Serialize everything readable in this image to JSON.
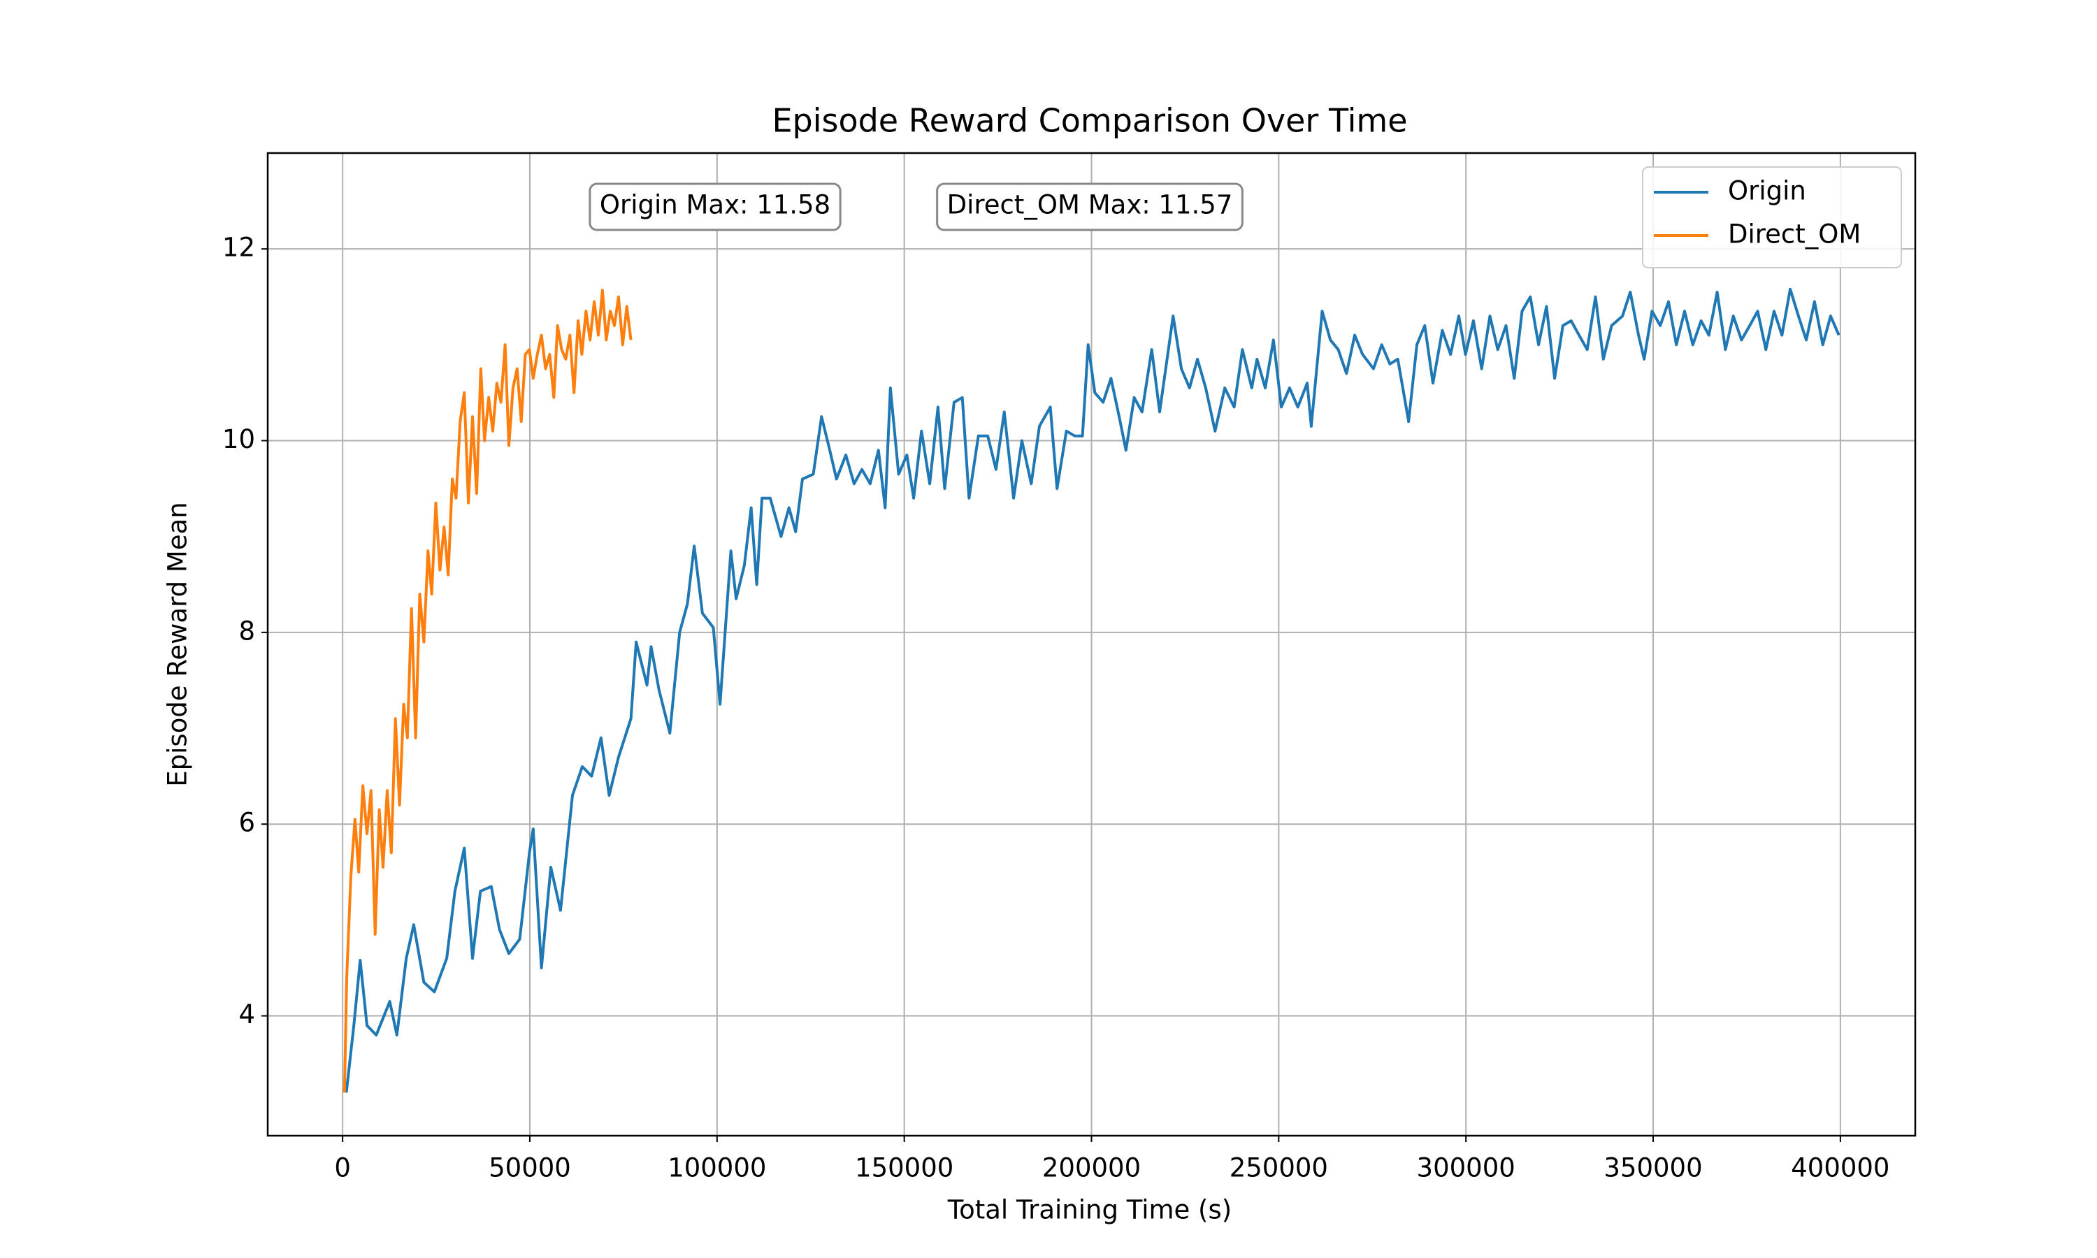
{
  "chart_data": {
    "type": "line",
    "title": "Episode Reward Comparison Over Time",
    "x_label": "Total Training Time (s)",
    "y_label": "Episode Reward Mean",
    "xlim": [
      -20000,
      420000
    ],
    "ylim": [
      2.75,
      13.0
    ],
    "xticks": [
      0,
      50000,
      100000,
      150000,
      200000,
      250000,
      300000,
      350000,
      400000
    ],
    "yticks": [
      4,
      6,
      8,
      10,
      12
    ],
    "grid": true,
    "legend": "upper right",
    "annotations": [
      "Origin Max: 11.58",
      "Direct_OM Max: 11.57"
    ],
    "series": [
      {
        "name": "Origin",
        "color": "#1f77b4",
        "x": [
          1000,
          3000,
          4700,
          6500,
          9000,
          12600,
          14500,
          17000,
          19000,
          21700,
          24500,
          27800,
          30000,
          32500,
          34700,
          36800,
          39700,
          41900,
          44400,
          47300,
          49900,
          50900,
          53100,
          55600,
          58200,
          61400,
          64000,
          66500,
          69000,
          71200,
          73700,
          77000,
          78400,
          81300,
          82400,
          84500,
          87400,
          90000,
          92100,
          93900,
          96100,
          99000,
          100800,
          103700,
          105100,
          107300,
          109100,
          110600,
          112000,
          114200,
          117100,
          119200,
          121000,
          122800,
          125700,
          127900,
          130100,
          131900,
          134400,
          136600,
          138700,
          140900,
          143100,
          144900,
          146300,
          148500,
          150700,
          152500,
          154600,
          156800,
          159000,
          160800,
          163300,
          165500,
          167300,
          169800,
          172300,
          174500,
          176700,
          179200,
          181400,
          183900,
          186100,
          189000,
          190800,
          193300,
          195500,
          197600,
          199100,
          200900,
          203100,
          205200,
          207400,
          209200,
          211400,
          213500,
          216100,
          218200,
          221800,
          224000,
          226200,
          228300,
          230500,
          233000,
          235600,
          238100,
          240300,
          242800,
          244200,
          246400,
          248600,
          250700,
          252900,
          255100,
          257600,
          258700,
          261600,
          263800,
          265900,
          268100,
          270300,
          272400,
          275300,
          277500,
          279700,
          281800,
          284700,
          286900,
          289000,
          291200,
          293700,
          295900,
          298100,
          299900,
          302000,
          304200,
          306400,
          308500,
          310700,
          312900,
          315000,
          317200,
          319400,
          321500,
          323700,
          325900,
          328100,
          330200,
          332400,
          334600,
          336700,
          338900,
          341800,
          343900,
          346100,
          347600,
          349700,
          351900,
          354100,
          356200,
          358400,
          360600,
          362800,
          364900,
          367100,
          369300,
          371400,
          373600,
          375800,
          377900,
          380100,
          382300,
          384400,
          386600,
          388800,
          390900,
          393100,
          395300,
          397400,
          399600
        ],
        "values": [
          3.2,
          3.9,
          4.58,
          3.9,
          3.8,
          4.15,
          3.8,
          4.6,
          4.95,
          4.35,
          4.25,
          4.6,
          5.3,
          5.75,
          4.6,
          5.3,
          5.35,
          4.9,
          4.65,
          4.8,
          5.7,
          5.95,
          4.5,
          5.55,
          5.1,
          6.3,
          6.6,
          6.5,
          6.9,
          6.3,
          6.7,
          7.1,
          7.9,
          7.45,
          7.85,
          7.4,
          6.95,
          8.0,
          8.3,
          8.9,
          8.2,
          8.05,
          7.25,
          8.85,
          8.35,
          8.7,
          9.3,
          8.5,
          9.4,
          9.4,
          9.0,
          9.3,
          9.05,
          9.6,
          9.65,
          10.25,
          9.9,
          9.6,
          9.85,
          9.55,
          9.7,
          9.55,
          9.9,
          9.3,
          10.55,
          9.65,
          9.85,
          9.4,
          10.1,
          9.55,
          10.35,
          9.5,
          10.4,
          10.45,
          9.4,
          10.05,
          10.05,
          9.7,
          10.3,
          9.4,
          10.0,
          9.55,
          10.15,
          10.35,
          9.5,
          10.1,
          10.05,
          10.05,
          11.0,
          10.5,
          10.4,
          10.65,
          10.25,
          9.9,
          10.45,
          10.3,
          10.95,
          10.3,
          11.3,
          10.75,
          10.55,
          10.85,
          10.55,
          10.1,
          10.55,
          10.35,
          10.95,
          10.55,
          10.85,
          10.55,
          11.05,
          10.35,
          10.55,
          10.35,
          10.6,
          10.15,
          11.35,
          11.05,
          10.95,
          10.7,
          11.1,
          10.9,
          10.75,
          11.0,
          10.8,
          10.85,
          10.2,
          11.0,
          11.2,
          10.6,
          11.15,
          10.9,
          11.3,
          10.9,
          11.25,
          10.75,
          11.3,
          10.95,
          11.2,
          10.65,
          11.35,
          11.5,
          11.0,
          11.4,
          10.65,
          11.2,
          11.25,
          11.1,
          10.95,
          11.5,
          10.85,
          11.2,
          11.3,
          11.55,
          11.1,
          10.85,
          11.35,
          11.2,
          11.45,
          11.0,
          11.35,
          11.0,
          11.25,
          11.1,
          11.55,
          10.95,
          11.3,
          11.05,
          11.2,
          11.35,
          10.95,
          11.35,
          11.1,
          11.58,
          11.3,
          11.05,
          11.45,
          11.0,
          11.3,
          11.1
        ]
      },
      {
        "name": "Direct_OM",
        "color": "#ff7f0e",
        "x": [
          500,
          1100,
          2200,
          3300,
          4300,
          5400,
          6500,
          7600,
          8700,
          9800,
          10800,
          11900,
          13000,
          14100,
          15200,
          16300,
          17300,
          18400,
          19500,
          20600,
          21700,
          22800,
          23800,
          24900,
          26000,
          27100,
          28200,
          29300,
          30300,
          31400,
          32500,
          33600,
          34700,
          35800,
          36900,
          37900,
          39000,
          40100,
          41200,
          42300,
          43400,
          44400,
          45500,
          46600,
          47700,
          48800,
          49900,
          50900,
          52000,
          53100,
          54200,
          55300,
          56400,
          57400,
          58500,
          59600,
          60700,
          61800,
          62900,
          63900,
          65000,
          66100,
          67200,
          68300,
          69400,
          70400,
          71500,
          72600,
          73700,
          74800,
          75900,
          77000
        ],
        "values": [
          3.2,
          4.4,
          5.45,
          6.05,
          5.5,
          6.4,
          5.9,
          6.35,
          4.85,
          6.15,
          5.55,
          6.35,
          5.7,
          7.1,
          6.2,
          7.25,
          6.9,
          8.25,
          6.9,
          8.4,
          7.9,
          8.85,
          8.4,
          9.35,
          8.65,
          9.1,
          8.6,
          9.6,
          9.4,
          10.2,
          10.5,
          9.35,
          10.25,
          9.45,
          10.75,
          10.0,
          10.45,
          10.1,
          10.6,
          10.4,
          11.0,
          9.95,
          10.55,
          10.75,
          10.2,
          10.9,
          10.95,
          10.65,
          10.9,
          11.1,
          10.75,
          10.9,
          10.45,
          11.2,
          10.95,
          10.85,
          11.1,
          10.5,
          11.25,
          10.9,
          11.35,
          11.05,
          11.45,
          11.1,
          11.57,
          11.05,
          11.35,
          11.2,
          11.5,
          11.0,
          11.4,
          11.05
        ]
      }
    ]
  }
}
